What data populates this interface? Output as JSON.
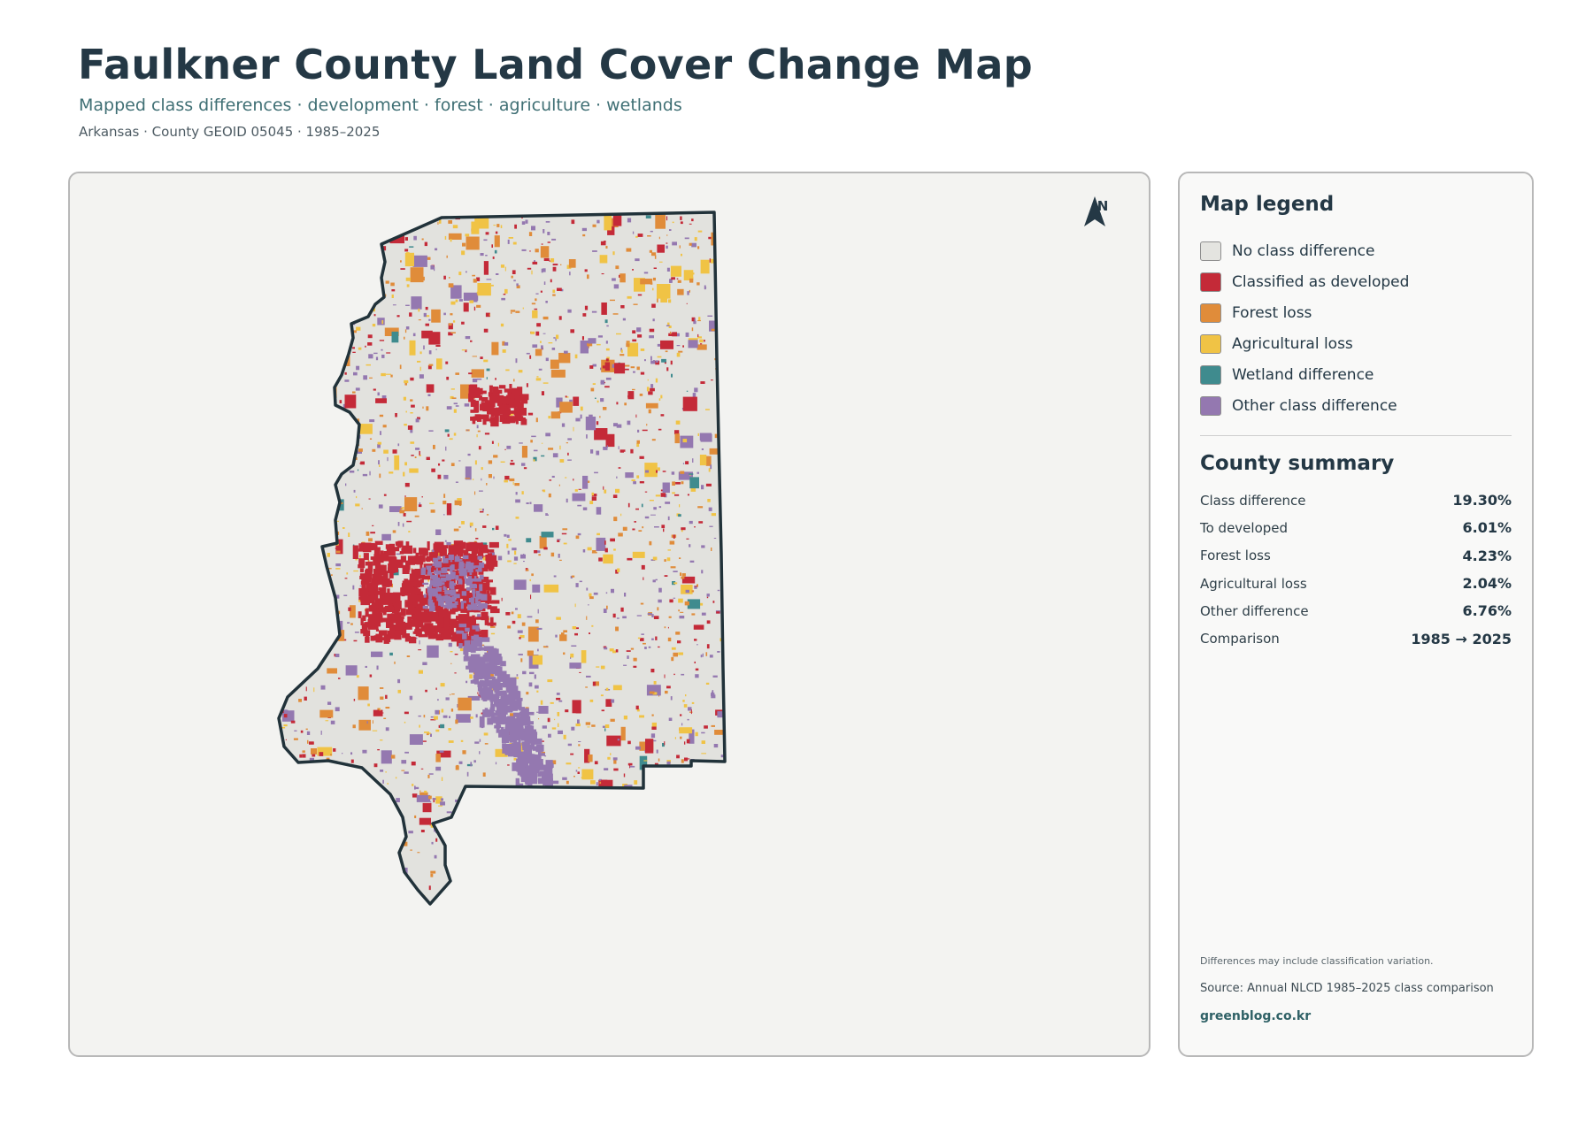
{
  "header": {
    "title": "Faulkner County Land Cover Change Map",
    "subtitle": "Mapped class differences · development · forest · agriculture · wetlands",
    "meta": "Arkansas · County GEOID 05045 · 1985–2025"
  },
  "map": {
    "north_label": "N",
    "boundary_color": "#21323a",
    "fill_color": "#e2e2de"
  },
  "legend": {
    "title": "Map legend",
    "items": [
      {
        "label": "No class difference",
        "color": "#e4e4e0"
      },
      {
        "label": "Classified as developed",
        "color": "#c42a38"
      },
      {
        "label": "Forest loss",
        "color": "#e08c3a"
      },
      {
        "label": "Agricultural loss",
        "color": "#f0c345"
      },
      {
        "label": "Wetland difference",
        "color": "#3f8b8e"
      },
      {
        "label": "Other class difference",
        "color": "#9478b0"
      }
    ]
  },
  "summary": {
    "title": "County summary",
    "rows": [
      {
        "label": "Class difference",
        "value": "19.30%"
      },
      {
        "label": "To developed",
        "value": "6.01%"
      },
      {
        "label": "Forest loss",
        "value": "4.23%"
      },
      {
        "label": "Agricultural loss",
        "value": "2.04%"
      },
      {
        "label": "Other difference",
        "value": "6.76%"
      },
      {
        "label": "Comparison",
        "value": "1985 → 2025"
      }
    ]
  },
  "footer": {
    "note": "Differences may include classification variation.",
    "source": "Source: Annual NLCD 1985–2025 class comparison",
    "site": "greenblog.co.kr"
  }
}
